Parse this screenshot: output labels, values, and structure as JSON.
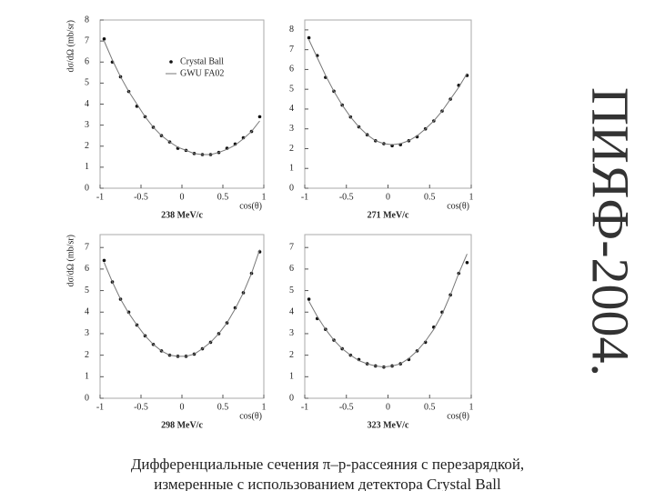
{
  "side_title": "ПИЯФ-2004.",
  "caption": [
    "Дифференциальные сечения π–p-рассеяния с перезарядкой,",
    "измеренные с использованием детектора Crystal Ball"
  ],
  "chart_data": [
    {
      "type": "scatter",
      "subtitle": "238 MeV/c",
      "xlabel": "cos(θ)",
      "ylabel": "dσ/dΩ (mb/sr)",
      "legend": "upper right",
      "x": [
        -0.95,
        -0.85,
        -0.75,
        -0.65,
        -0.55,
        -0.45,
        -0.35,
        -0.25,
        -0.15,
        -0.05,
        0.05,
        0.15,
        0.25,
        0.35,
        0.45,
        0.55,
        0.65,
        0.75,
        0.85,
        0.95
      ],
      "xlim": [
        -1,
        1
      ],
      "xticks": [
        -1,
        -0.5,
        0,
        0.5,
        1
      ],
      "ylim": [
        0,
        8
      ],
      "yticks": [
        0,
        1,
        2,
        3,
        4,
        5,
        6,
        7,
        8
      ],
      "series": [
        {
          "name": "Crystal Ball",
          "color": "#111",
          "line": false,
          "values": [
            7.1,
            6.0,
            5.3,
            4.6,
            3.9,
            3.4,
            2.9,
            2.5,
            2.2,
            1.9,
            1.8,
            1.65,
            1.6,
            1.6,
            1.7,
            1.9,
            2.1,
            2.4,
            2.7,
            3.4
          ]
        },
        {
          "name": "GWU FA02",
          "color": "#777",
          "line": true,
          "values": [
            7.0,
            6.1,
            5.3,
            4.6,
            4.0,
            3.4,
            2.9,
            2.5,
            2.2,
            1.95,
            1.8,
            1.65,
            1.6,
            1.6,
            1.7,
            1.85,
            2.05,
            2.35,
            2.7,
            3.2
          ]
        }
      ]
    },
    {
      "type": "scatter",
      "subtitle": "271 MeV/c",
      "xlabel": "cos(θ)",
      "x": [
        -0.95,
        -0.85,
        -0.75,
        -0.65,
        -0.55,
        -0.45,
        -0.35,
        -0.25,
        -0.15,
        -0.05,
        0.05,
        0.15,
        0.25,
        0.35,
        0.45,
        0.55,
        0.65,
        0.75,
        0.85,
        0.95
      ],
      "xlim": [
        -1,
        1
      ],
      "xticks": [
        -1,
        -0.5,
        0,
        0.5,
        1
      ],
      "ylim": [
        0,
        8.5
      ],
      "yticks": [
        0,
        1,
        2,
        3,
        4,
        5,
        6,
        7,
        8
      ],
      "series": [
        {
          "color": "#111",
          "line": false,
          "values": [
            7.6,
            6.7,
            5.6,
            4.9,
            4.2,
            3.6,
            3.1,
            2.7,
            2.4,
            2.25,
            2.15,
            2.2,
            2.4,
            2.6,
            3.0,
            3.4,
            3.9,
            4.5,
            5.2,
            5.7
          ]
        },
        {
          "color": "#777",
          "line": true,
          "values": [
            7.5,
            6.6,
            5.7,
            4.9,
            4.2,
            3.6,
            3.1,
            2.7,
            2.4,
            2.25,
            2.2,
            2.25,
            2.4,
            2.65,
            3.0,
            3.4,
            3.9,
            4.5,
            5.1,
            5.8
          ]
        }
      ]
    },
    {
      "type": "scatter",
      "subtitle": "298 MeV/c",
      "xlabel": "cos(θ)",
      "ylabel": "dσ/dΩ (mb/sr)",
      "x": [
        -0.95,
        -0.85,
        -0.75,
        -0.65,
        -0.55,
        -0.45,
        -0.35,
        -0.25,
        -0.15,
        -0.05,
        0.05,
        0.15,
        0.25,
        0.35,
        0.45,
        0.55,
        0.65,
        0.75,
        0.85,
        0.95
      ],
      "xlim": [
        -1,
        1
      ],
      "xticks": [
        -1,
        -0.5,
        0,
        0.5,
        1
      ],
      "ylim": [
        0,
        7.6
      ],
      "yticks": [
        0,
        1,
        2,
        3,
        4,
        5,
        6,
        7
      ],
      "series": [
        {
          "color": "#111",
          "line": false,
          "values": [
            6.4,
            5.4,
            4.6,
            4.0,
            3.4,
            2.9,
            2.5,
            2.2,
            2.0,
            1.95,
            1.95,
            2.05,
            2.3,
            2.6,
            3.0,
            3.5,
            4.2,
            4.9,
            5.8,
            6.8
          ]
        },
        {
          "color": "#777",
          "line": true,
          "values": [
            6.3,
            5.4,
            4.6,
            3.95,
            3.4,
            2.9,
            2.5,
            2.2,
            2.0,
            1.95,
            1.95,
            2.05,
            2.3,
            2.6,
            3.0,
            3.5,
            4.15,
            4.9,
            5.8,
            6.9
          ]
        }
      ]
    },
    {
      "type": "scatter",
      "subtitle": "323 MeV/c",
      "xlabel": "cos(θ)",
      "x": [
        -0.95,
        -0.85,
        -0.75,
        -0.65,
        -0.55,
        -0.45,
        -0.35,
        -0.25,
        -0.15,
        -0.05,
        0.05,
        0.15,
        0.25,
        0.35,
        0.45,
        0.55,
        0.65,
        0.75,
        0.85,
        0.95
      ],
      "xlim": [
        -1,
        1
      ],
      "xticks": [
        -1,
        -0.5,
        0,
        0.5,
        1
      ],
      "ylim": [
        0,
        7.6
      ],
      "yticks": [
        0,
        1,
        2,
        3,
        4,
        5,
        6,
        7
      ],
      "series": [
        {
          "color": "#111",
          "line": false,
          "values": [
            4.6,
            3.7,
            3.2,
            2.7,
            2.3,
            2.0,
            1.8,
            1.6,
            1.5,
            1.45,
            1.5,
            1.6,
            1.8,
            2.2,
            2.6,
            3.3,
            4.0,
            4.8,
            5.8,
            6.3
          ]
        },
        {
          "color": "#777",
          "line": true,
          "values": [
            4.5,
            3.8,
            3.2,
            2.7,
            2.3,
            2.0,
            1.75,
            1.6,
            1.5,
            1.45,
            1.5,
            1.6,
            1.85,
            2.2,
            2.65,
            3.2,
            3.9,
            4.8,
            5.8,
            6.7
          ]
        }
      ]
    }
  ]
}
